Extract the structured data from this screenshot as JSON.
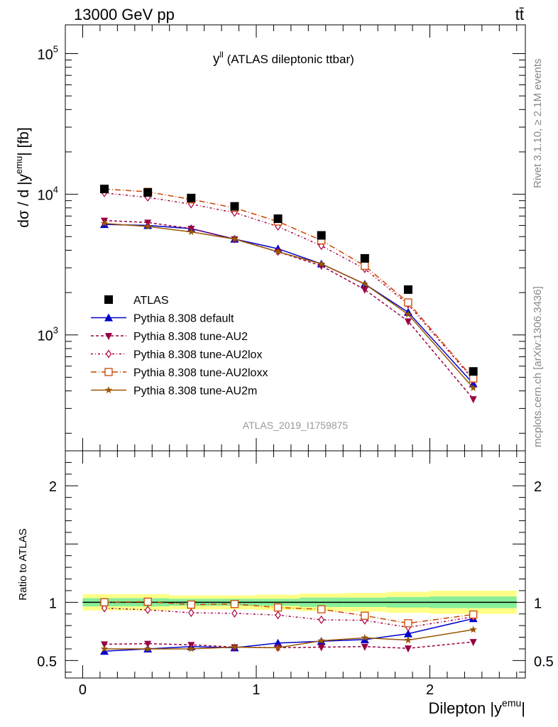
{
  "header": {
    "left": "13000 GeV pp",
    "right": "tt̄"
  },
  "side_labels": {
    "rivet": "Rivet 3.1.10, ≥ 2.1M events",
    "mcplots": "mcplots.cern.ch [arXiv:1306.3436]"
  },
  "chart_data": {
    "type": "line",
    "title_main": "y",
    "title_sup": "ll",
    "title_rest": " (ATLAS dileptonic ttbar)",
    "watermark": "ATLAS_2019_I1759875",
    "x": [
      0.125,
      0.375,
      0.625,
      0.875,
      1.125,
      1.375,
      1.625,
      1.875,
      2.25
    ],
    "bin_edges": [
      0,
      0.25,
      0.5,
      0.75,
      1.0,
      1.25,
      1.5,
      1.75,
      2.0,
      2.5
    ],
    "xlim": [
      -0.1,
      2.55
    ],
    "x_ticks": [
      0,
      1,
      2
    ],
    "x_tick_labels": [
      "0",
      "1",
      "2"
    ],
    "xlabel_main": "Dilepton |y",
    "xlabel_sup": "emu",
    "xlabel_end": "|",
    "top": {
      "ylabel_main": "dσ / d |y",
      "ylabel_sup": "emu",
      "ylabel_end": "| [fb]",
      "yscale": "log",
      "ylim": [
        150,
        160000
      ],
      "y_tick_labels": [
        {
          "base": "10",
          "exp": "3",
          "value": 1000
        },
        {
          "base": "10",
          "exp": "4",
          "value": 10000
        },
        {
          "base": "10",
          "exp": "5",
          "value": 100000
        }
      ]
    },
    "bottom": {
      "ylabel": "Ratio to ATLAS",
      "ylim": [
        0.35,
        2.3
      ],
      "y_ticks": [
        0.5,
        1,
        2
      ],
      "y_tick_labels": [
        "0.5",
        "1",
        "2"
      ],
      "band_inner": [
        0.035,
        0.035,
        0.03,
        0.03,
        0.03,
        0.04,
        0.04,
        0.045,
        0.05
      ],
      "band_outer": [
        0.07,
        0.07,
        0.06,
        0.06,
        0.065,
        0.075,
        0.08,
        0.09,
        0.1
      ]
    },
    "series": [
      {
        "name": "ATLAS",
        "color": "#000000",
        "marker": "square",
        "dash": "none",
        "values": [
          10900,
          10300,
          9400,
          8200,
          6700,
          5100,
          3500,
          2100,
          550
        ],
        "ratio": [
          1,
          1,
          1,
          1,
          1,
          1,
          1,
          1,
          1
        ]
      },
      {
        "name": "Pythia 8.308 default",
        "color": "#0000cc",
        "marker": "triangle-up",
        "dash": "none",
        "values": [
          6100,
          6000,
          5700,
          4800,
          4100,
          3200,
          2300,
          1450,
          450
        ],
        "ratio": [
          0.58,
          0.6,
          0.62,
          0.61,
          0.65,
          0.665,
          0.68,
          0.73,
          0.86
        ]
      },
      {
        "name": "Pythia 8.308 tune-AU2",
        "color": "#990044",
        "marker": "triangle-down",
        "dash": "4,3",
        "values": [
          6500,
          6300,
          5700,
          4800,
          3900,
          3100,
          2100,
          1250,
          350
        ],
        "ratio": [
          0.64,
          0.645,
          0.635,
          0.615,
          0.61,
          0.615,
          0.62,
          0.605,
          0.66
        ]
      },
      {
        "name": "Pythia 8.308 tune-AU2lox",
        "color": "#aa0044",
        "marker": "diamond-open",
        "dash": "3,3,1,3",
        "values": [
          10200,
          9500,
          8500,
          7400,
          5900,
          4300,
          2950,
          1650,
          480
        ],
        "ratio": [
          0.95,
          0.935,
          0.91,
          0.905,
          0.89,
          0.85,
          0.845,
          0.785,
          0.875
        ]
      },
      {
        "name": "Pythia 8.308 tune-AU2loxx",
        "color": "#cc4400",
        "marker": "square-open",
        "dash": "8,3,1,3",
        "values": [
          10900,
          10400,
          9200,
          8000,
          6400,
          4700,
          3100,
          1700,
          490
        ],
        "ratio": [
          1.0,
          1.005,
          0.98,
          0.985,
          0.955,
          0.94,
          0.885,
          0.82,
          0.895
        ]
      },
      {
        "name": "Pythia 8.308 tune-AU2m",
        "color": "#995500",
        "marker": "star",
        "dash": "none",
        "values": [
          6200,
          5900,
          5400,
          4800,
          3900,
          3200,
          2300,
          1400,
          420
        ],
        "ratio": [
          0.6,
          0.6,
          0.6,
          0.615,
          0.61,
          0.67,
          0.695,
          0.675,
          0.765
        ]
      }
    ]
  }
}
